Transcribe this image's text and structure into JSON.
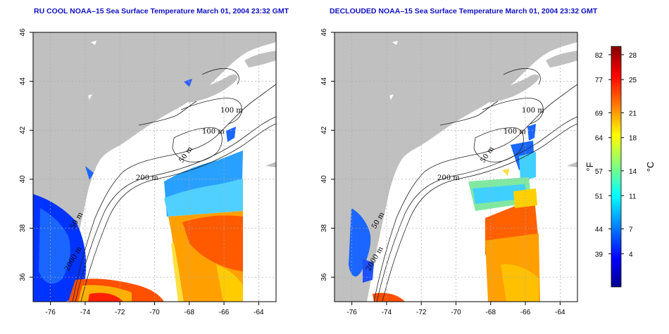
{
  "panels": [
    {
      "id": "left",
      "title": "RU COOL NOAA–15 Sea Surface Temperature March 01, 2004 23:32 GMT",
      "contour_labels": [
        "100 m",
        "100 m",
        "50 m",
        "200 m",
        "50 m",
        "2000 m"
      ]
    },
    {
      "id": "right",
      "title": "DECLOUDED NOAA–15 Sea Surface Temperature March 01, 2004 23:32 GMT",
      "contour_labels": [
        "100 m",
        "100 m",
        "50 m",
        "200 m",
        "50 m",
        "2000 m"
      ]
    }
  ],
  "axes": {
    "lon_ticks": [
      "-76",
      "-74",
      "-72",
      "-70",
      "-68",
      "-66",
      "-64"
    ],
    "lat_ticks": [
      "46",
      "44",
      "42",
      "40",
      "38",
      "36"
    ],
    "lon_range": [
      -77,
      -63
    ],
    "lat_range": [
      35,
      46
    ]
  },
  "colorbar": {
    "unit_f": "°F",
    "unit_c": "°C",
    "f_ticks": [
      "82",
      "77",
      "69",
      "64",
      "57",
      "51",
      "44",
      "39"
    ],
    "c_ticks": [
      "28",
      "25",
      "21",
      "18",
      "14",
      "11",
      "7",
      "4"
    ],
    "c_range": [
      0,
      29
    ],
    "colors": [
      "#00008f",
      "#0000ff",
      "#0080ff",
      "#00ffff",
      "#80ff80",
      "#ffff00",
      "#ff8000",
      "#ff0000",
      "#800000"
    ]
  },
  "colors": {
    "land": "#c0c0c0",
    "title": "#1010c0",
    "grid": "#aaaaaa"
  }
}
